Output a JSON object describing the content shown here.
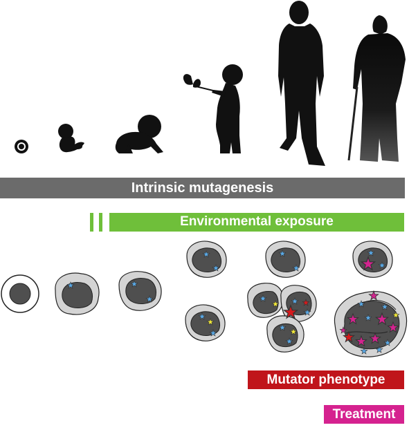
{
  "labels": {
    "intrinsic": "Intrinsic mutagenesis",
    "environmental": "Environmental exposure",
    "mutator": "Mutator phenotype",
    "treatment": "Treatment"
  },
  "colors": {
    "intrinsic_bar": "#6b6b6b",
    "environmental_bar": "#6fbf3a",
    "mutator_bar": "#c0151b",
    "treatment_bar": "#d5228f",
    "silhouette": "#111111",
    "cell_membrane": "#d4d4d4",
    "nucleus": "#4f4f4f",
    "star_blue": "#5aa9e6",
    "star_yellow": "#f2e93a",
    "star_red": "#d7191c",
    "star_magenta": "#d3248f"
  }
}
